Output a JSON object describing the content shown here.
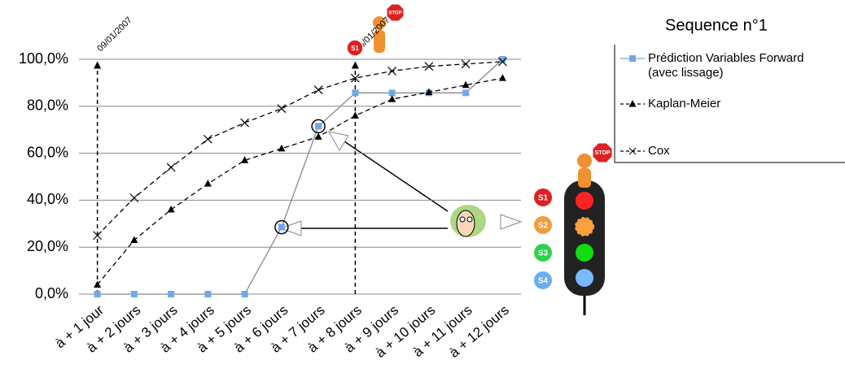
{
  "chart_data": {
    "type": "line",
    "categories": [
      "à + 1 jour",
      "à + 2 jours",
      "à + 3 jours",
      "à + 4 jours",
      "à + 5 jours",
      "à + 6 jours",
      "à + 7 jours",
      "à + 8 jours",
      "à + 9 jours",
      "à + 10 jours",
      "à + 11 jours",
      "à + 12 jours"
    ],
    "series": [
      {
        "name": "Prédiction Variables Forward (avec lissage)",
        "color": "#6fa8e8",
        "values": [
          0,
          0,
          0,
          0,
          0,
          28.5,
          71.5,
          85.7,
          85.7,
          85.7,
          85.7,
          100
        ]
      },
      {
        "name": "Kaplan-Meier",
        "color": "#000000",
        "values": [
          4,
          23,
          36,
          47,
          57,
          62,
          67,
          76,
          83,
          86,
          89,
          92
        ]
      },
      {
        "name": "Cox",
        "color": "#000000",
        "values": [
          25,
          41,
          54,
          66,
          73,
          79,
          87,
          92,
          95,
          97,
          98,
          99
        ]
      }
    ],
    "ylim": [
      0,
      100
    ],
    "yticks": [
      {
        "value": 0,
        "label": "0,0%"
      },
      {
        "value": 20,
        "label": "20,0%"
      },
      {
        "value": 40,
        "label": "40,0%"
      },
      {
        "value": 60,
        "label": "60,0%"
      },
      {
        "value": 80,
        "label": "80,0%"
      },
      {
        "value": 100,
        "label": "100,0%"
      }
    ],
    "grid": true,
    "legend_title": "Sequence n°1",
    "annotations": [
      "09/01/2007",
      "16/01/2007"
    ],
    "signals": [
      "S1",
      "S2",
      "S3",
      "S4"
    ],
    "stop_sign": "STOP"
  }
}
